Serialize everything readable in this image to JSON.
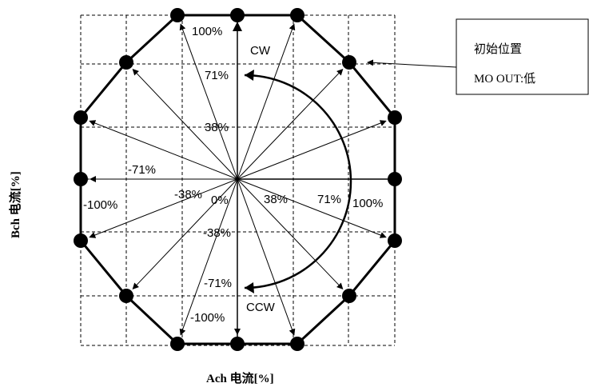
{
  "axes": {
    "x_title": "Ach 电流[%]",
    "y_title": "Bch 电流[%]"
  },
  "percent_labels": {
    "top_100": "100%",
    "top_71": "71%",
    "top_38": "38%",
    "left_71": "-71%",
    "left_100": "-100%",
    "left_38": "-38%",
    "zero": "0%",
    "right_38": "38%",
    "right_71": "71%",
    "right_100": "100%",
    "bottom_38": "-38%",
    "bottom_71": "-71%",
    "bottom_100": "-100%"
  },
  "rotation": {
    "cw": "CW",
    "ccw": "CCW"
  },
  "callout": {
    "line1": "初始位置",
    "line2": "MO OUT:低"
  }
}
